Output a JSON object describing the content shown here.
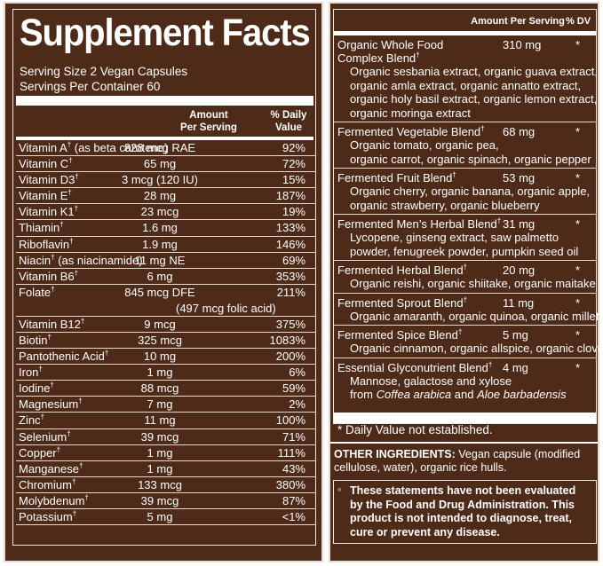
{
  "title": "Supplement Facts",
  "serving_size": "Serving Size 2 Vegan Capsules",
  "servings_per_container": "Servings Per Container 60",
  "left_headers": {
    "amount_line1": "Amount",
    "amount_line2": "Per Serving",
    "dv_line1": "% Daily",
    "dv_line2": "Value"
  },
  "nutrients": [
    {
      "name": "Vitamin A",
      "dagger": "†",
      "extra": " (as beta carotene)",
      "amount": "828 mcg RAE",
      "dv": "92%"
    },
    {
      "name": "Vitamin C",
      "dagger": "†",
      "extra": "",
      "amount": "65 mg",
      "dv": "72%"
    },
    {
      "name": "Vitamin D3",
      "dagger": "†",
      "extra": "",
      "amount": "3 mcg (120 IU)",
      "dv": "15%"
    },
    {
      "name": "Vitamin E",
      "dagger": "†",
      "extra": "",
      "amount": "28 mg",
      "dv": "187%"
    },
    {
      "name": "Vitamin K1",
      "dagger": "†",
      "extra": "",
      "amount": "23 mcg",
      "dv": "19%"
    },
    {
      "name": "Thiamin",
      "dagger": "†",
      "extra": "",
      "amount": "1.6 mg",
      "dv": "133%"
    },
    {
      "name": "Riboflavin",
      "dagger": "†",
      "extra": "",
      "amount": "1.9 mg",
      "dv": "146%"
    },
    {
      "name": "Niacin",
      "dagger": "†",
      "extra": " (as niacinamide)",
      "amount": "11 mg NE",
      "dv": "69%"
    },
    {
      "name": "Vitamin B6",
      "dagger": "†",
      "extra": "",
      "amount": "6 mg",
      "dv": "353%"
    },
    {
      "name": "Folate",
      "dagger": "†",
      "extra": "",
      "amount": "845 mcg DFE",
      "dv": "211%",
      "sub": "(497 mcg folic acid)"
    },
    {
      "name": "Vitamin B12",
      "dagger": "†",
      "extra": "",
      "amount": "9 mcg",
      "dv": "375%"
    },
    {
      "name": "Biotin",
      "dagger": "†",
      "extra": "",
      "amount": "325 mcg",
      "dv": "1083%"
    },
    {
      "name": "Pantothenic Acid",
      "dagger": "†",
      "extra": "",
      "amount": "10 mg",
      "dv": "200%"
    },
    {
      "name": "Iron",
      "dagger": "†",
      "extra": "",
      "amount": "1 mg",
      "dv": "6%"
    },
    {
      "name": "Iodine",
      "dagger": "†",
      "extra": "",
      "amount": "88 mcg",
      "dv": "59%"
    },
    {
      "name": "Magnesium",
      "dagger": "†",
      "extra": "",
      "amount": "7 mg",
      "dv": "2%"
    },
    {
      "name": "Zinc",
      "dagger": "†",
      "extra": "",
      "amount": "11 mg",
      "dv": "100%"
    },
    {
      "name": "Selenium",
      "dagger": "†",
      "extra": "",
      "amount": "39 mcg",
      "dv": "71%"
    },
    {
      "name": "Copper",
      "dagger": "†",
      "extra": "",
      "amount": "1 mg",
      "dv": "111%"
    },
    {
      "name": "Manganese",
      "dagger": "†",
      "extra": "",
      "amount": "1 mg",
      "dv": "43%"
    },
    {
      "name": "Chromium",
      "dagger": "†",
      "extra": "",
      "amount": "133 mcg",
      "dv": "380%"
    },
    {
      "name": "Molybdenum",
      "dagger": "†",
      "extra": "",
      "amount": "39 mcg",
      "dv": "87%"
    },
    {
      "name": "Potassium",
      "dagger": "†",
      "extra": "",
      "amount": "5 mg",
      "dv": "<1%"
    }
  ],
  "right_headers": {
    "amount": "Amount Per Serving",
    "dv": "% DV"
  },
  "blends": [
    {
      "name_lines": [
        "Organic Whole Food",
        "Complex Blend"
      ],
      "dagger": "†",
      "amount": "310 mg",
      "star": "*",
      "ingredients": [
        "Organic sesbania extract, organic guava extract,",
        "organic amla extract, organic annatto extract,",
        "organic holy basil extract, organic lemon extract,",
        "organic moringa extract"
      ]
    },
    {
      "name_lines": [
        "Fermented Vegetable Blend"
      ],
      "dagger": "†",
      "amount": "68 mg",
      "star": "*",
      "ingredients": [
        "Organic tomato, organic pea,",
        "organic carrot, organic spinach, organic pepper"
      ]
    },
    {
      "name_lines": [
        "Fermented Fruit Blend"
      ],
      "dagger": "†",
      "amount": "53 mg",
      "star": "*",
      "ingredients": [
        "Organic cherry, organic banana, organic apple,",
        "organic strawberry, organic blueberry"
      ]
    },
    {
      "name_lines": [
        "Fermented Men’s Herbal Blend"
      ],
      "dagger": "†",
      "amount": "31 mg",
      "star": "*",
      "ingredients": [
        "Lycopene, ginseng extract, saw palmetto",
        "powder, fenugreek powder, pumpkin seed oil"
      ]
    },
    {
      "name_lines": [
        "Fermented Herbal Blend"
      ],
      "dagger": "†",
      "amount": "20 mg",
      "star": "*",
      "ingredients": [
        "Organic reishi, organic shiitake, organic maitake"
      ]
    },
    {
      "name_lines": [
        "Fermented Sprout Blend"
      ],
      "dagger": "†",
      "amount": "11 mg",
      "star": "*",
      "ingredients": [
        "Organic amaranth, organic quinoa, organic millet"
      ]
    },
    {
      "name_lines": [
        "Fermented Spice Blend"
      ],
      "dagger": "†",
      "amount": "5 mg",
      "star": "*",
      "ingredients": [
        "Organic cinnamon, organic allspice, organic clove"
      ]
    },
    {
      "name_lines": [
        "Essential Glyconutrient Blend"
      ],
      "dagger": "†",
      "amount": "4 mg",
      "star": "*",
      "ingredients": [
        "Mannose, galactose and xylose"
      ],
      "last_line": {
        "from": "from ",
        "a": "Coffea arabica",
        "and": " and ",
        "b": "Aloe barbadensis"
      }
    }
  ],
  "daily_value_note": "* Daily Value not established.",
  "other_label": "OTHER INGREDIENTS:",
  "other_text_line1": " Vegan capsule (modified",
  "other_text_line2": "cellulose, water), organic rice hulls.",
  "disclaimer_symbol": "◦",
  "disclaimer_lines": [
    "These statements have not been evaluated",
    "by the Food and Drug Administration. This",
    "product is not intended to diagnose, treat,",
    "cure or prevent any disease."
  ],
  "colors": {
    "background": "#4e2a19",
    "text": "#ffffff",
    "rule": "#e8dcd0"
  }
}
